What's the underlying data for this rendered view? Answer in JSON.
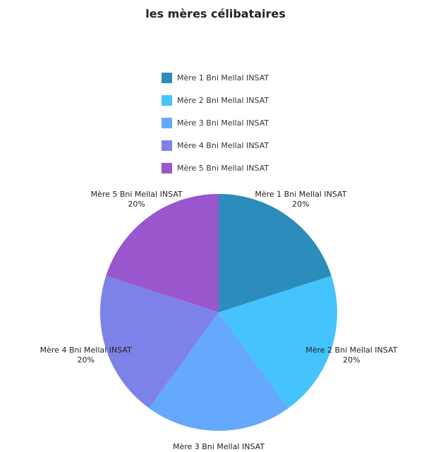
{
  "chart_data": {
    "type": "pie",
    "title": "les mères célibataires",
    "legend_position": "top",
    "slices": [
      {
        "label": "Mère 1 Bni Mellal INSAT",
        "value": 20,
        "percent_label": "20%",
        "color": "#2c8cbb"
      },
      {
        "label": "Mère 2 Bni Mellal INSAT",
        "value": 20,
        "percent_label": "20%",
        "color": "#45c3fd"
      },
      {
        "label": "Mère 3 Bni Mellal INSAT",
        "value": 20,
        "percent_label": "20%",
        "color": "#64a9fb"
      },
      {
        "label": "Mère 4 Bni Mellal INSAT",
        "value": 20,
        "percent_label": "20%",
        "color": "#7d82e8"
      },
      {
        "label": "Mère 5 Bni Mellal INSAT",
        "value": 20,
        "percent_label": "20%",
        "color": "#9a56cc"
      }
    ]
  }
}
